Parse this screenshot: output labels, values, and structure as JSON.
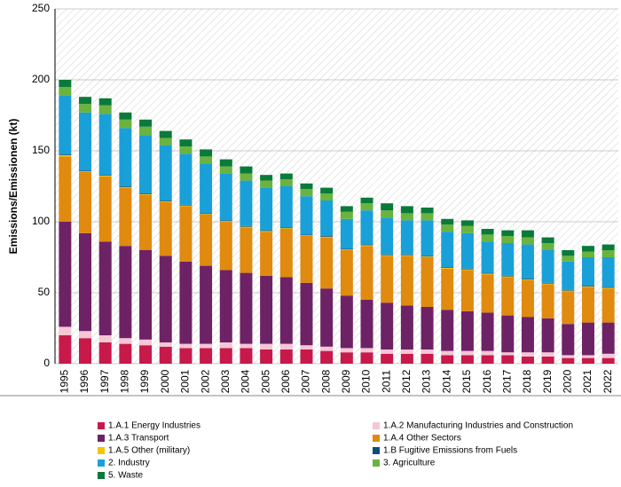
{
  "chart_data": {
    "type": "stacked-bar",
    "y_label": "Emissions/Emissionen (kt)",
    "categories": [
      "1995",
      "1996",
      "1997",
      "1998",
      "1999",
      "2000",
      "2001",
      "2002",
      "2003",
      "2004",
      "2005",
      "2006",
      "2007",
      "2008",
      "2009",
      "2010",
      "2011",
      "2012",
      "2013",
      "2014",
      "2015",
      "2016",
      "2017",
      "2018",
      "2019",
      "2020",
      "2021",
      "2022"
    ],
    "ylim": [
      0,
      250
    ],
    "yticks": [
      0,
      50,
      100,
      150,
      200,
      250
    ],
    "grid": true,
    "series": [
      {
        "name": "1.A.1 Energy Industries",
        "color": "#c8194b",
        "values": [
          20,
          18,
          15,
          14,
          13,
          12,
          11,
          11,
          11,
          11,
          10,
          10,
          10,
          9,
          8,
          8,
          7,
          7,
          7,
          6,
          6,
          6,
          6,
          5,
          5,
          4,
          4,
          4
        ]
      },
      {
        "name": "1.A.2 Manufacturing Industries and Construction",
        "color": "#f5c6d6",
        "values": [
          6,
          5,
          5,
          4,
          4,
          3,
          3,
          3,
          4,
          3,
          4,
          4,
          3,
          3,
          3,
          3,
          3,
          3,
          3,
          3,
          3,
          3,
          2,
          3,
          3,
          2,
          2,
          3
        ]
      },
      {
        "name": "1.A.3 Transport",
        "color": "#6e2266",
        "values": [
          74,
          69,
          66,
          65,
          63,
          61,
          58,
          55,
          51,
          50,
          48,
          47,
          44,
          41,
          37,
          34,
          33,
          31,
          30,
          29,
          28,
          27,
          26,
          25,
          24,
          22,
          23,
          22
        ]
      },
      {
        "name": "1.A.4 Other Sectors",
        "color": "#e08a0f",
        "values": [
          46,
          43,
          46,
          41,
          39,
          38,
          39,
          36,
          34,
          32,
          31,
          34,
          33,
          36,
          32,
          38,
          33,
          35,
          35,
          29,
          29,
          27,
          27,
          26,
          24,
          23,
          25,
          24
        ]
      },
      {
        "name": "1.A.5 Other (military)",
        "color": "#f5c400",
        "values": [
          1,
          0.5,
          0.5,
          0.5,
          0.5,
          0.5,
          0.5,
          0.5,
          0.5,
          0.5,
          0.5,
          0.5,
          0.5,
          0.5,
          0.5,
          0.5,
          0.5,
          0.5,
          0.5,
          0.5,
          0.5,
          0.5,
          0.5,
          0.5,
          0.5,
          0.5,
          0.5,
          0.5
        ]
      },
      {
        "name": "1.B Fugitive Emissions from Fuels",
        "color": "#0c4f7a",
        "values": [
          0.5,
          0.5,
          0.5,
          0.5,
          0.5,
          0.5,
          0.5,
          0.5,
          0.5,
          0.5,
          0.5,
          0.5,
          0.5,
          0.5,
          0.5,
          0.5,
          0.5,
          0.5,
          0.5,
          0.5,
          0.5,
          0.5,
          0.5,
          0.5,
          0.5,
          0.5,
          0.5,
          0.5
        ]
      },
      {
        "name": "2. Industry",
        "color": "#1aa0d8",
        "values": [
          41.5,
          41,
          43,
          41,
          41,
          39,
          36,
          35,
          33,
          32,
          30,
          29,
          27,
          25,
          21,
          24,
          26,
          24,
          25,
          25,
          25,
          22,
          23,
          24,
          23,
          20,
          20,
          21
        ]
      },
      {
        "name": "3. Agriculture",
        "color": "#6ab33e",
        "values": [
          6,
          6,
          6,
          6,
          6,
          5,
          5,
          5,
          5,
          5,
          5,
          5,
          5,
          5,
          5,
          5,
          5,
          5,
          5,
          5,
          5,
          5,
          5,
          5,
          5,
          4,
          4,
          5
        ]
      },
      {
        "name": "5. Waste",
        "color": "#0a7a3a",
        "values": [
          5,
          5,
          5,
          5,
          5,
          5,
          5,
          5,
          5,
          5,
          4,
          4,
          4,
          4,
          4,
          4,
          5,
          5,
          4,
          4,
          4,
          4,
          4,
          5,
          4,
          4,
          4,
          4
        ]
      }
    ]
  }
}
